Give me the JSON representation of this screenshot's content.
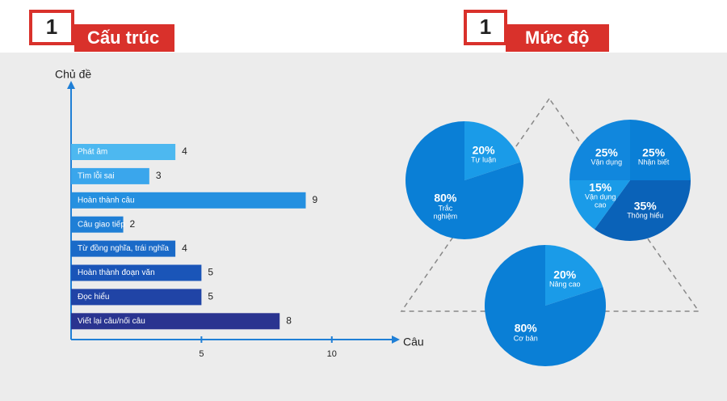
{
  "sections": [
    {
      "badge": "1",
      "title": "Cấu trúc"
    },
    {
      "badge": "1",
      "title": "Mức độ"
    }
  ],
  "chart_data": [
    {
      "type": "hbar",
      "y_label": "Chủ đề",
      "x_label": "Câu",
      "categories": [
        "Phát âm",
        "Tìm lỗi sai",
        "Hoàn thành câu",
        "Câu giao tiếp",
        "Từ đồng nghĩa, trái nghĩa",
        "Hoàn thành đoạn văn",
        "Đọc hiểu",
        "Viết lại câu/nối câu"
      ],
      "values": [
        4,
        3,
        9,
        2,
        4,
        5,
        5,
        8
      ],
      "colors": [
        "#4db8f0",
        "#3aa6ec",
        "#2590e0",
        "#1f7fd6",
        "#1a6ac8",
        "#1a55b8",
        "#2044a6",
        "#2a3490"
      ],
      "xlim": [
        0,
        12.3
      ],
      "xticks": [
        5,
        10
      ]
    },
    {
      "type": "pie",
      "categories": [
        "Tự luận",
        "Trắc nghiệm"
      ],
      "values": [
        20,
        80
      ],
      "value_labels": [
        "20%",
        "80%"
      ],
      "colors": [
        "#1a9be8",
        "#0a7fd6"
      ]
    },
    {
      "type": "pie",
      "categories": [
        "Nhận biết",
        "Thông hiểu",
        "Vận dụng cao",
        "Vận dụng"
      ],
      "values": [
        25,
        35,
        15,
        25
      ],
      "value_labels": [
        "25%",
        "35%",
        "15%",
        "25%"
      ],
      "colors": [
        "#0a7fd6",
        "#0a62b8",
        "#1a9be8",
        "#1187dd"
      ]
    },
    {
      "type": "pie",
      "categories": [
        "Nâng cao",
        "Cơ bản"
      ],
      "values": [
        20,
        80
      ],
      "value_labels": [
        "20%",
        "80%"
      ],
      "colors": [
        "#1a9be8",
        "#0a7fd6"
      ]
    }
  ]
}
